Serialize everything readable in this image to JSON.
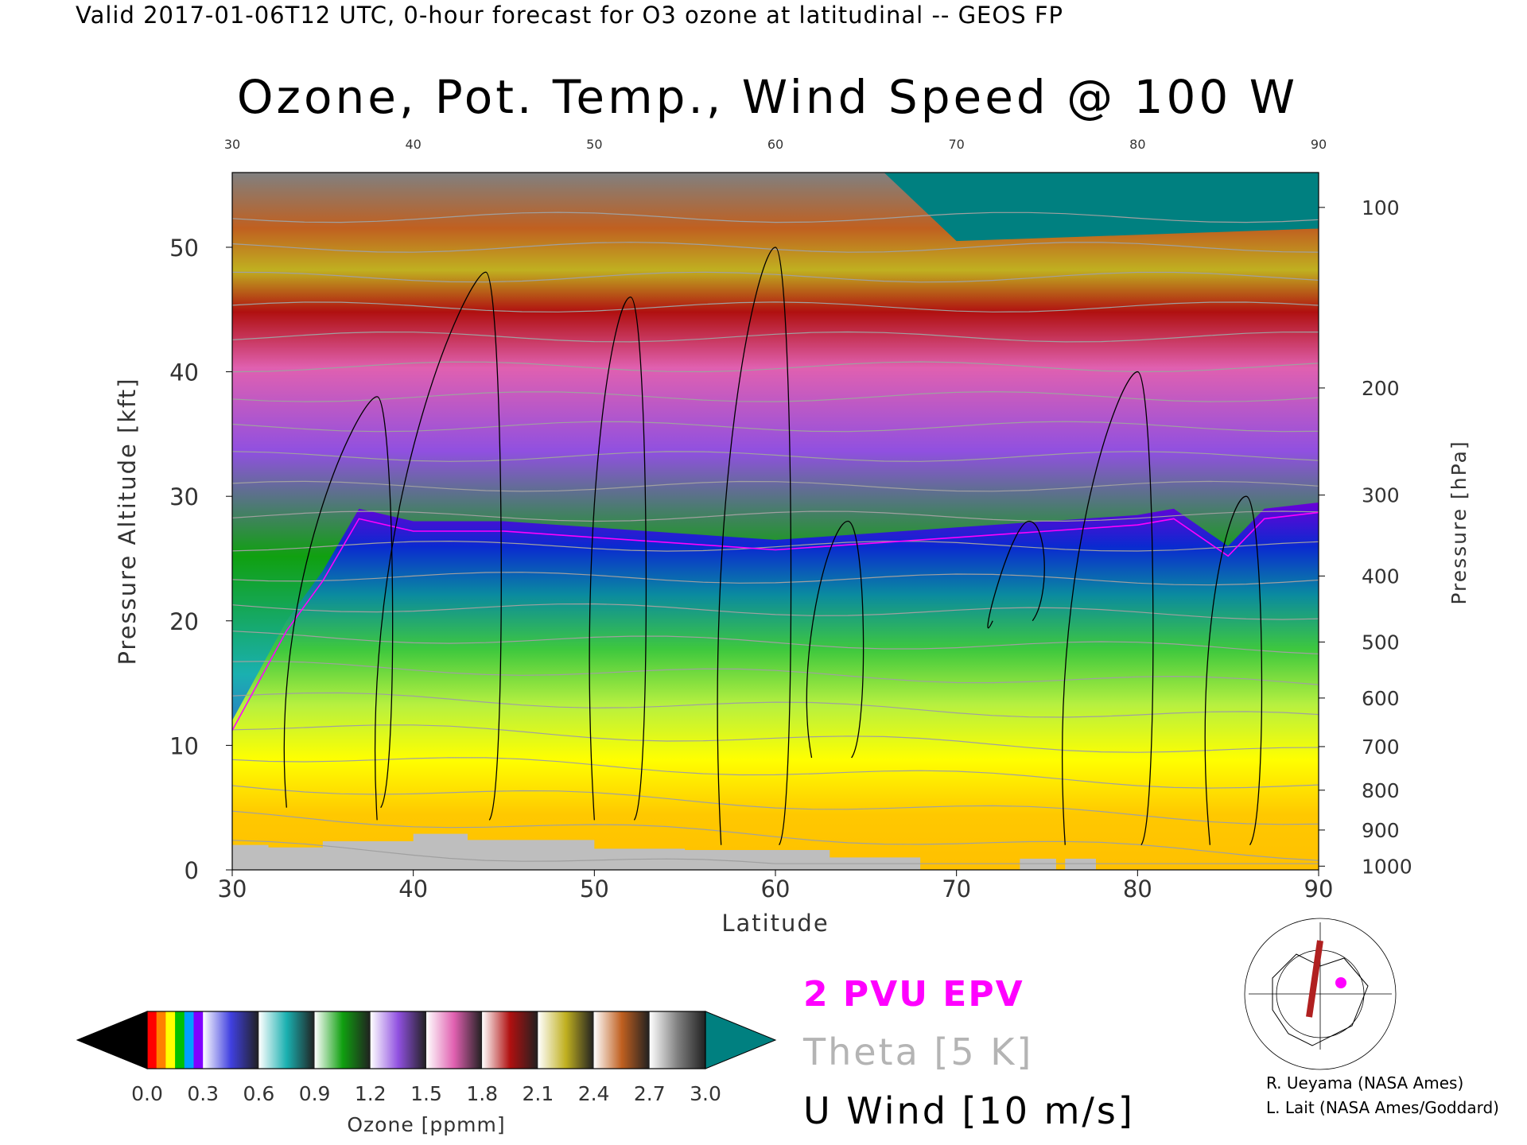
{
  "header": {
    "valid_line": "Valid 2017-01-06T12 UTC, 0-hour forecast for O3 ozone at latitudinal -- GEOS FP"
  },
  "chart_data": {
    "type": "heatmap",
    "title": "Ozone, Pot. Temp., Wind Speed @ 100 W",
    "xlabel": "Latitude",
    "ylabel_left": "Pressure Altitude [kft]",
    "ylabel_right": "Pressure [hPa]",
    "xlim": [
      30,
      90
    ],
    "ylim_kft": [
      0,
      56
    ],
    "x_ticks_bottom": [
      "30",
      "40",
      "50",
      "60",
      "70",
      "80",
      "90"
    ],
    "x_ticks_top": [
      "30",
      "40",
      "50",
      "60",
      "70",
      "80",
      "90"
    ],
    "y_ticks_left": [
      {
        "value": 0,
        "label": "0"
      },
      {
        "value": 10,
        "label": "10"
      },
      {
        "value": 20,
        "label": "20"
      },
      {
        "value": 30,
        "label": "30"
      },
      {
        "value": 40,
        "label": "40"
      },
      {
        "value": 50,
        "label": "50"
      }
    ],
    "y_ticks_right": [
      {
        "kft": 0.3,
        "label": "1000"
      },
      {
        "kft": 3.2,
        "label": "900"
      },
      {
        "kft": 6.4,
        "label": "800"
      },
      {
        "kft": 9.9,
        "label": "700"
      },
      {
        "kft": 13.8,
        "label": "600"
      },
      {
        "kft": 18.3,
        "label": "500"
      },
      {
        "kft": 23.6,
        "label": "400"
      },
      {
        "kft": 30.1,
        "label": "300"
      },
      {
        "kft": 38.7,
        "label": "200"
      },
      {
        "kft": 53.2,
        "label": "100"
      }
    ],
    "overlays": [
      {
        "name": "2 PVU EPV",
        "color": "#ff00ff"
      },
      {
        "name": "Theta [5 K]",
        "color": "#b4b4b4"
      },
      {
        "name": "U Wind [10 m/s]",
        "color": "#000000"
      }
    ],
    "tropopause_kft": {
      "lat": [
        30,
        33,
        35,
        37,
        40,
        45,
        50,
        55,
        60,
        65,
        70,
        75,
        80,
        82,
        85,
        87,
        90
      ],
      "values": [
        12,
        20,
        24,
        29,
        28,
        28,
        27.5,
        27,
        26.5,
        27,
        27.5,
        28,
        28.5,
        29,
        26,
        29,
        29.5
      ]
    },
    "colorbar": {
      "label": "Ozone [ppmm]",
      "ticks": [
        "0.0",
        "0.3",
        "0.6",
        "0.9",
        "1.2",
        "1.5",
        "1.8",
        "2.1",
        "2.4",
        "2.7",
        "3.0"
      ],
      "range": [
        0.0,
        3.0
      ],
      "band_colors": [
        "#ff7a00",
        "#4040e0",
        "#1ab0b0",
        "#10a010",
        "#9050e0",
        "#e060b0",
        "#b01010",
        "#c0b020",
        "#c06020",
        "#808080"
      ],
      "under_color": "#000000",
      "over_color": "#008080"
    }
  },
  "legend": {
    "epv": "2 PVU EPV",
    "theta": "Theta [5 K]",
    "u_wind": "U Wind [10 m/s]"
  },
  "credits": {
    "line1": "R. Ueyama (NASA Ames)",
    "line2": "L. Lait (NASA Ames/Goddard)"
  }
}
